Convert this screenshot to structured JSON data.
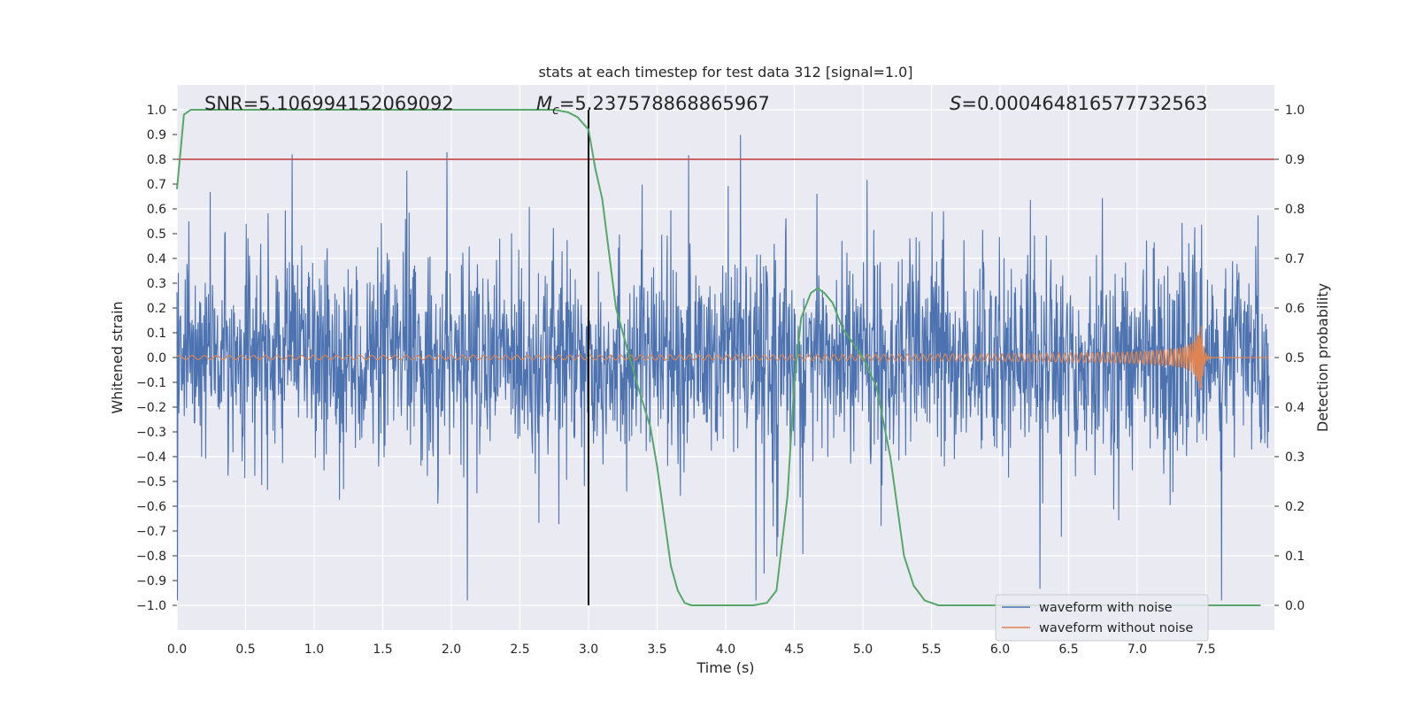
{
  "chart_data": {
    "type": "line",
    "title": "stats at each timestep for test data 312 [signal=1.0]",
    "xlabel": "Time (s)",
    "ylabel_left": "Whitened strain",
    "ylabel_right": "Detection probability",
    "xlim": [
      0.0,
      8.0
    ],
    "ylim_left": [
      -1.1,
      1.1
    ],
    "ylim_right": [
      -0.05,
      1.05
    ],
    "xticks": [
      "0.0",
      "0.5",
      "1.0",
      "1.5",
      "2.0",
      "2.5",
      "3.0",
      "3.5",
      "4.0",
      "4.5",
      "5.0",
      "5.5",
      "6.0",
      "6.5",
      "7.0",
      "7.5"
    ],
    "yticks_left": [
      "1.0",
      "0.9",
      "0.8",
      "0.7",
      "0.6",
      "0.5",
      "0.4",
      "0.3",
      "0.2",
      "0.1",
      "0.0",
      "−0.1",
      "−0.2",
      "−0.3",
      "−0.4",
      "−0.5",
      "−0.6",
      "−0.7",
      "−0.8",
      "−0.9",
      "−1.0"
    ],
    "yticks_right": [
      "1.0",
      "0.9",
      "0.8",
      "0.7",
      "0.6",
      "0.5",
      "0.4",
      "0.3",
      "0.2",
      "0.1",
      "0.0"
    ],
    "annotations": {
      "snr": "SNR=5.106994152069092",
      "mc_symbol": "M",
      "mc_sub": "c",
      "mc_value": "=5.237578868865967",
      "s_symbol": "S",
      "s_value": "=0.000464816577732563"
    },
    "threshold": {
      "value": 0.9,
      "axis": "right",
      "color": "#c44e52"
    },
    "vertical_marker": {
      "x": 3.0,
      "ymin": -1.0,
      "ymax": 1.0,
      "color": "#000000"
    },
    "series": [
      {
        "name": "waveform with noise",
        "axis": "left",
        "color": "#4c72b0",
        "description": "noisy whitened strain, amplitude mostly within ±0.4 with spikes up to ±0.98"
      },
      {
        "name": "waveform without noise",
        "axis": "left",
        "color": "#dd8452",
        "description": "chirp: amplitude ~0.01 growing to ~0.13 at merger near t=7.47 s"
      },
      {
        "name": "detection probability",
        "axis": "right",
        "color": "#55a868",
        "x": [
          0.0,
          0.05,
          0.1,
          0.15,
          0.2,
          0.5,
          1.0,
          1.5,
          2.0,
          2.5,
          2.75,
          2.85,
          2.92,
          3.0,
          3.05,
          3.1,
          3.2,
          3.35,
          3.45,
          3.5,
          3.6,
          3.65,
          3.7,
          3.75,
          4.0,
          4.2,
          4.3,
          4.37,
          4.45,
          4.5,
          4.55,
          4.62,
          4.67,
          4.72,
          4.78,
          4.85,
          5.0,
          5.1,
          5.2,
          5.3,
          5.37,
          5.45,
          5.55,
          5.7,
          6.0,
          7.0,
          7.9
        ],
        "y": [
          0.84,
          0.99,
          1.0,
          1.0,
          1.0,
          1.0,
          1.0,
          1.0,
          1.0,
          1.0,
          1.0,
          0.995,
          0.985,
          0.96,
          0.88,
          0.82,
          0.6,
          0.45,
          0.36,
          0.28,
          0.08,
          0.03,
          0.005,
          0.0,
          0.0,
          0.0,
          0.005,
          0.03,
          0.22,
          0.45,
          0.58,
          0.63,
          0.64,
          0.63,
          0.61,
          0.56,
          0.5,
          0.44,
          0.3,
          0.1,
          0.04,
          0.01,
          0.0,
          0.0,
          0.0,
          0.0,
          0.0
        ]
      }
    ],
    "legend": {
      "location": "lower right",
      "entries": [
        "waveform with noise",
        "waveform without noise"
      ]
    }
  }
}
